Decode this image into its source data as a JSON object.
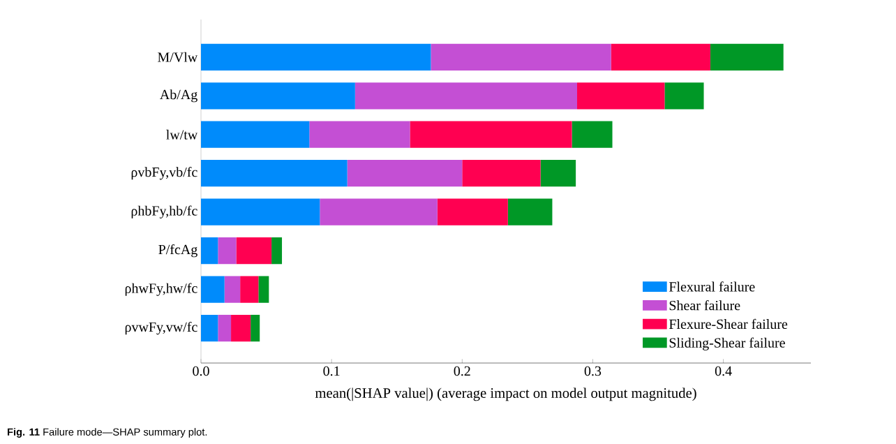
{
  "chart_data": {
    "type": "bar",
    "orientation": "horizontal",
    "stacked": true,
    "categories": [
      "M/Vlw",
      "Ab/Ag",
      "lw/tw",
      "ρvbFy,vb/fc",
      "ρhbFy,hb/fc",
      "P/fcAg",
      "ρhwFy,hw/fc",
      "ρvwFy,vw/fc"
    ],
    "series": [
      {
        "name": "Flexural failure",
        "color": "#008bfb",
        "values": [
          0.176,
          0.118,
          0.083,
          0.112,
          0.091,
          0.013,
          0.018,
          0.013
        ]
      },
      {
        "name": "Shear failure",
        "color": "#c44fd4",
        "values": [
          0.138,
          0.17,
          0.077,
          0.088,
          0.09,
          0.014,
          0.012,
          0.01
        ]
      },
      {
        "name": "Flexure-Shear failure",
        "color": "#ff0051",
        "values": [
          0.076,
          0.067,
          0.124,
          0.06,
          0.054,
          0.027,
          0.014,
          0.015
        ]
      },
      {
        "name": "Sliding-Shear failure",
        "color": "#009826",
        "values": [
          0.056,
          0.03,
          0.031,
          0.027,
          0.034,
          0.008,
          0.008,
          0.007
        ]
      }
    ],
    "xlim": [
      0,
      0.467
    ],
    "xticks": [
      {
        "value": 0,
        "label": "0.0"
      },
      0.1,
      0.2,
      0.3,
      0.4
    ],
    "xlabel": "mean(|SHAP value|) (average impact on model output magnitude)",
    "legend": "bottom right",
    "annotations": [
      "**Fig. 11** Failure mode—SHAP summary plot."
    ]
  }
}
